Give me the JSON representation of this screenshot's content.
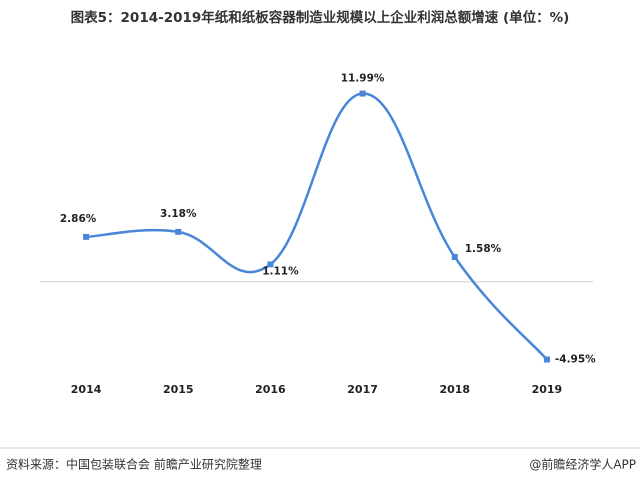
{
  "chart_data": {
    "type": "line",
    "title": "图表5：2014-2019年纸和纸板容器制造业规模以上企业利润总额增速 (单位：%)",
    "categories": [
      "2014",
      "2015",
      "2016",
      "2017",
      "2018",
      "2019"
    ],
    "values": [
      2.86,
      3.18,
      1.11,
      11.99,
      1.58,
      -4.95
    ],
    "value_labels": [
      "2.86%",
      "3.18%",
      "1.11%",
      "11.99%",
      "1.58%",
      "-4.95%"
    ],
    "color": "#4a86d8",
    "ylim": [
      -6,
      14
    ],
    "source": "资料来源：中国包装联合会 前瞻产业研究院整理",
    "credit": "@前瞻经济学人APP"
  }
}
